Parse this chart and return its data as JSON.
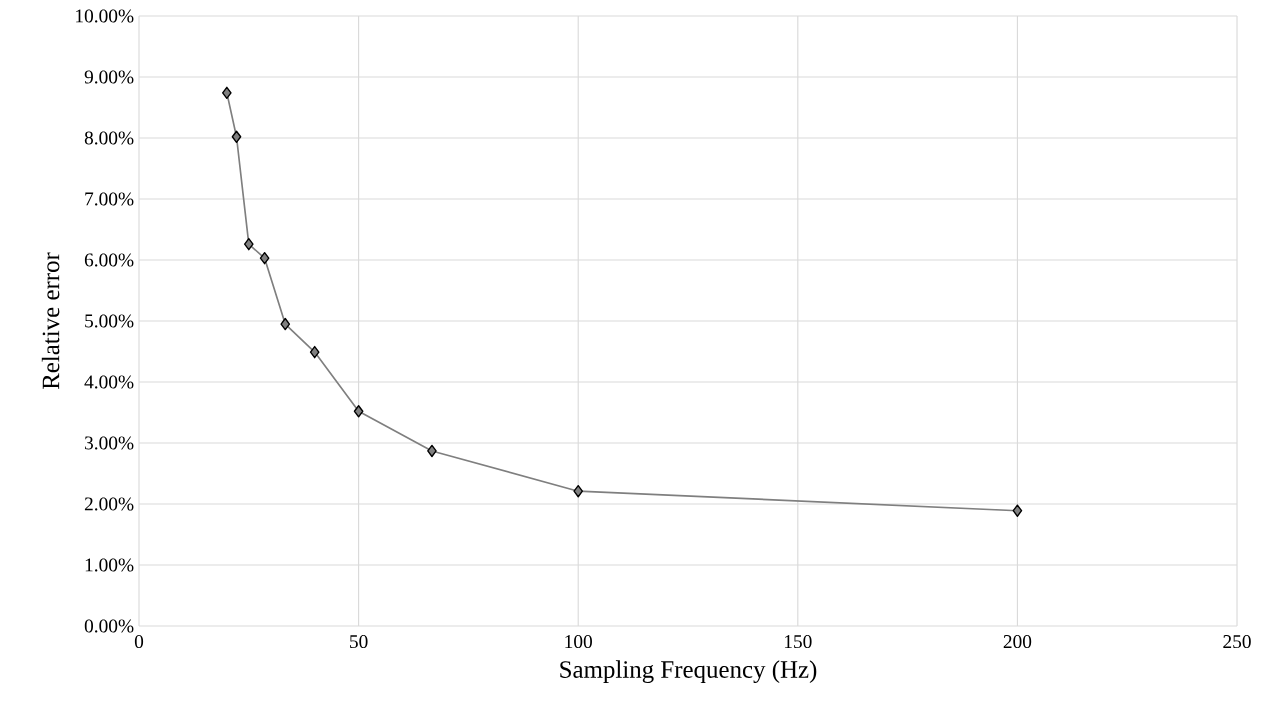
{
  "chart_data": {
    "type": "line",
    "xlabel": "Sampling Frequency (Hz)",
    "ylabel": "Relative error",
    "x": [
      20,
      22.2,
      25,
      28.6,
      33.3,
      40,
      50,
      66.7,
      100,
      200
    ],
    "series": [
      {
        "color": "#7f7f7f",
        "values": [
          8.74,
          8.02,
          6.26,
          6.03,
          4.95,
          4.49,
          3.52,
          2.87,
          2.21,
          1.89
        ]
      }
    ],
    "xlim": [
      0,
      250
    ],
    "xticks": [
      0,
      50,
      100,
      150,
      200,
      250
    ],
    "ylim": [
      0,
      10
    ],
    "yticks": [
      {
        "value": 0,
        "label": "0.00%"
      },
      {
        "value": 1,
        "label": "1.00%"
      },
      {
        "value": 2,
        "label": "2.00%"
      },
      {
        "value": 3,
        "label": "3.00%"
      },
      {
        "value": 4,
        "label": "4.00%"
      },
      {
        "value": 5,
        "label": "5.00%"
      },
      {
        "value": 6,
        "label": "6.00%"
      },
      {
        "value": 7,
        "label": "7.00%"
      },
      {
        "value": 8,
        "label": "8.00%"
      },
      {
        "value": 9,
        "label": "9.00%"
      },
      {
        "value": 10,
        "label": "10.00%"
      }
    ],
    "grid": true,
    "marker": "diamond",
    "line_style": "solid",
    "legend": false
  }
}
